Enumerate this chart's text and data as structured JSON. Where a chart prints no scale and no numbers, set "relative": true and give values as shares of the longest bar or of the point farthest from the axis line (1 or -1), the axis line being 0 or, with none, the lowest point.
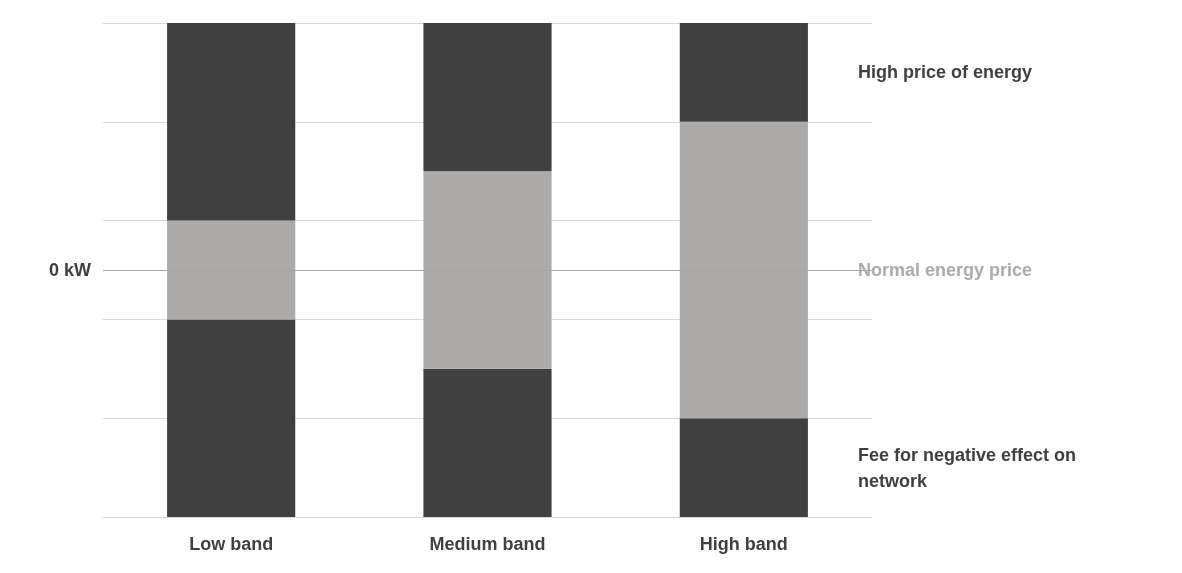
{
  "chart_data": {
    "type": "bar",
    "stacked": true,
    "relative": true,
    "categories": [
      "Low band",
      "Medium band",
      "High band"
    ],
    "series": [
      {
        "name": "Fee for negative effect on network",
        "color": "#404040",
        "values": [
          0.4,
          0.3,
          0.2
        ]
      },
      {
        "name": "Normal energy price",
        "color": "#aeaaa9",
        "values": [
          0.2,
          0.4,
          0.6
        ]
      },
      {
        "name": "High price of energy",
        "color": "#404040",
        "values": [
          0.4,
          0.3,
          0.2
        ]
      }
    ],
    "ref_lines": [
      {
        "axis": "y",
        "value": 0.5,
        "label": "0 kW",
        "color": "#a6a6a6"
      }
    ],
    "grid": "y",
    "legend": false
  }
}
